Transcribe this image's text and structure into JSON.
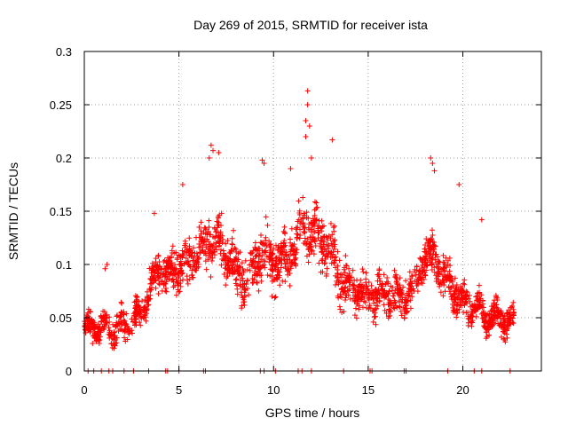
{
  "chart_data": {
    "type": "scatter",
    "title": "Day 269 of 2015, SRMTID for receiver ista",
    "xlabel": "GPS time / hours",
    "ylabel": "SRMTID / TECUs",
    "xlim": [
      0,
      24.15
    ],
    "ylim": [
      0,
      0.3
    ],
    "x_ticks": [
      0,
      5,
      10,
      15,
      20
    ],
    "x_tick_labels": [
      "0",
      "5",
      "10",
      "15",
      "20"
    ],
    "y_ticks": [
      0,
      0.05,
      0.1,
      0.15,
      0.2,
      0.25,
      0.3
    ],
    "y_tick_labels": [
      "0",
      "0.05",
      "0.1",
      "0.15",
      "0.2",
      "0.25",
      "0.3"
    ],
    "grid": true,
    "marker": "+",
    "color": "#ff0000",
    "series": [
      {
        "name": "SRMTID",
        "trend": [
          [
            0.0,
            0.038
          ],
          [
            0.5,
            0.042
          ],
          [
            1.0,
            0.04
          ],
          [
            1.5,
            0.038
          ],
          [
            2.0,
            0.04
          ],
          [
            2.5,
            0.045
          ],
          [
            3.0,
            0.055
          ],
          [
            3.5,
            0.08
          ],
          [
            4.0,
            0.095
          ],
          [
            4.5,
            0.09
          ],
          [
            5.0,
            0.098
          ],
          [
            5.5,
            0.102
          ],
          [
            6.0,
            0.11
          ],
          [
            6.5,
            0.12
          ],
          [
            7.0,
            0.125
          ],
          [
            7.5,
            0.11
          ],
          [
            8.0,
            0.095
          ],
          [
            8.5,
            0.085
          ],
          [
            9.0,
            0.1
          ],
          [
            9.5,
            0.115
          ],
          [
            10.0,
            0.1
          ],
          [
            10.5,
            0.105
          ],
          [
            11.0,
            0.115
          ],
          [
            11.5,
            0.135
          ],
          [
            12.0,
            0.13
          ],
          [
            12.5,
            0.125
          ],
          [
            13.0,
            0.115
          ],
          [
            13.5,
            0.09
          ],
          [
            14.0,
            0.08
          ],
          [
            14.5,
            0.075
          ],
          [
            15.0,
            0.07
          ],
          [
            15.5,
            0.072
          ],
          [
            16.0,
            0.075
          ],
          [
            16.5,
            0.072
          ],
          [
            17.0,
            0.07
          ],
          [
            17.5,
            0.085
          ],
          [
            18.0,
            0.11
          ],
          [
            18.5,
            0.105
          ],
          [
            19.0,
            0.09
          ],
          [
            19.5,
            0.075
          ],
          [
            20.0,
            0.065
          ],
          [
            20.5,
            0.06
          ],
          [
            21.0,
            0.055
          ],
          [
            21.5,
            0.05
          ],
          [
            22.0,
            0.05
          ],
          [
            22.5,
            0.045
          ]
        ],
        "spread": [
          [
            0.0,
            0.018
          ],
          [
            3.0,
            0.022
          ],
          [
            6.0,
            0.035
          ],
          [
            9.0,
            0.035
          ],
          [
            12.0,
            0.04
          ],
          [
            15.0,
            0.028
          ],
          [
            18.0,
            0.032
          ],
          [
            21.0,
            0.025
          ],
          [
            22.7,
            0.02
          ]
        ],
        "n_points": 2200,
        "x_range": [
          0.0,
          22.7
        ],
        "zero_points_x": [
          0.2,
          0.5,
          0.9,
          1.3,
          1.5,
          2.1,
          2.6,
          3.4,
          4.3,
          4.4,
          5.0,
          6.3,
          6.4,
          9.3,
          9.5,
          10.1,
          11.3,
          11.5,
          12.0,
          13.7,
          15.1,
          15.2,
          16.9,
          17.0,
          19.2,
          20.6,
          21.0,
          22.5
        ],
        "peaks": [
          [
            11.8,
            0.263
          ],
          [
            11.8,
            0.25
          ],
          [
            11.7,
            0.235
          ],
          [
            11.9,
            0.23
          ],
          [
            11.7,
            0.22
          ],
          [
            12.0,
            0.2
          ],
          [
            13.1,
            0.217
          ],
          [
            10.9,
            0.19
          ],
          [
            6.7,
            0.212
          ],
          [
            6.8,
            0.207
          ],
          [
            7.1,
            0.205
          ],
          [
            6.6,
            0.2
          ],
          [
            9.4,
            0.198
          ],
          [
            9.5,
            0.195
          ],
          [
            18.3,
            0.2
          ],
          [
            18.4,
            0.195
          ],
          [
            18.5,
            0.188
          ],
          [
            19.8,
            0.175
          ],
          [
            5.2,
            0.175
          ],
          [
            21.0,
            0.142
          ],
          [
            3.7,
            0.148
          ],
          [
            1.2,
            0.1
          ],
          [
            1.1,
            0.096
          ]
        ],
        "seed": 269
      }
    ]
  }
}
